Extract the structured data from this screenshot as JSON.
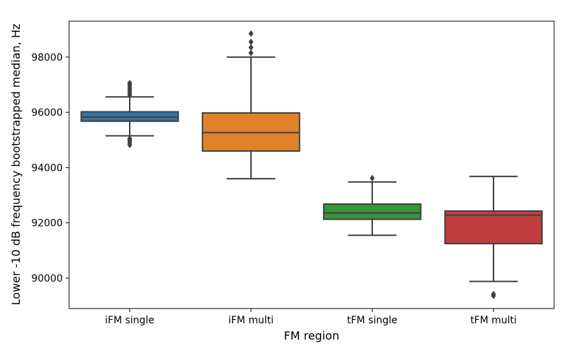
{
  "chart_data": {
    "type": "box",
    "xlabel": "FM region",
    "ylabel": "Lower -10 dB frequency bootstrapped median, Hz",
    "ylim": [
      88900,
      99300
    ],
    "yticks": [
      90000,
      92000,
      94000,
      96000,
      98000
    ],
    "grid": false,
    "categories": [
      "iFM single",
      "iFM multi",
      "tFM single",
      "tFM multi"
    ],
    "boxes": [
      {
        "category": "iFM single",
        "color": "#3274a1",
        "whisker_low": 95150,
        "q1": 95680,
        "median": 95830,
        "q3": 96020,
        "whisker_high": 96560,
        "outliers": [
          96620,
          96700,
          96780,
          96850,
          96920,
          97000,
          97060,
          95050,
          94980,
          94900,
          94820
        ]
      },
      {
        "category": "iFM multi",
        "color": "#e1812c",
        "whisker_low": 93600,
        "q1": 94600,
        "median": 95270,
        "q3": 95980,
        "whisker_high": 98000,
        "outliers": [
          98150,
          98350,
          98550,
          98850
        ]
      },
      {
        "category": "tFM single",
        "color": "#3a923a",
        "whisker_low": 91550,
        "q1": 92130,
        "median": 92360,
        "q3": 92680,
        "whisker_high": 93480,
        "outliers": [
          93620
        ]
      },
      {
        "category": "tFM multi",
        "color": "#c03d3e",
        "whisker_low": 89880,
        "q1": 91250,
        "median": 92280,
        "q3": 92430,
        "whisker_high": 93680,
        "outliers": [
          89420,
          89360
        ]
      }
    ]
  }
}
